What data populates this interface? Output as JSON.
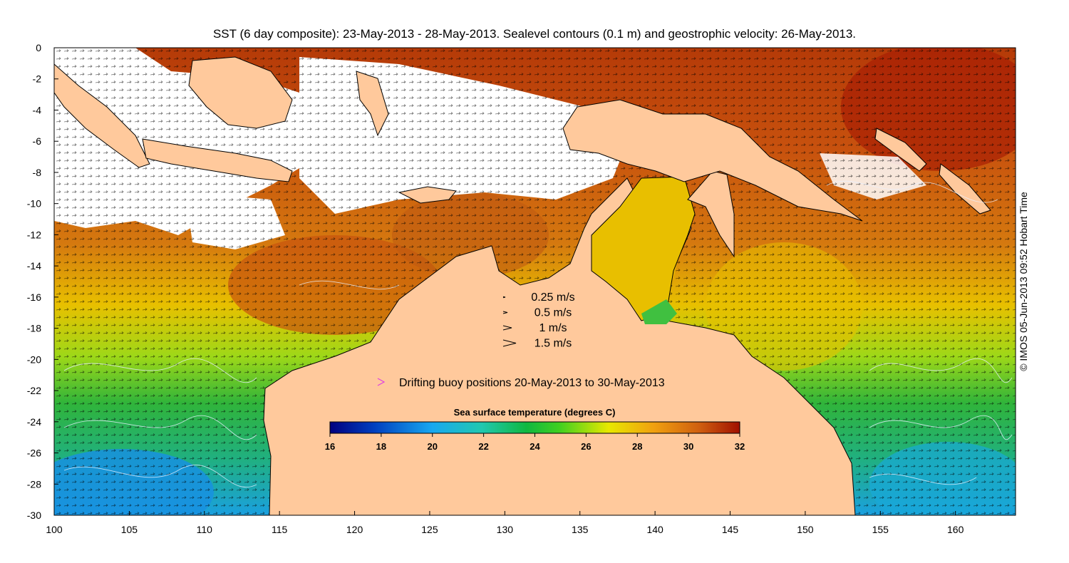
{
  "title": "SST (6 day composite): 23-May-2013 - 28-May-2013. Sealevel contours (0.1 m) and geostrophic velocity: 26-May-2013.",
  "credit": "© IMOS 05-Jun-2013 09:52 Hobart Time",
  "map": {
    "lon_range": [
      100,
      164
    ],
    "lat_range": [
      -30,
      0
    ],
    "x_ticks": [
      "100",
      "105",
      "110",
      "115",
      "120",
      "125",
      "130",
      "135",
      "140",
      "145",
      "150",
      "155",
      "160"
    ],
    "y_ticks": [
      "0",
      "-2",
      "-4",
      "-6",
      "-8",
      "-10",
      "-12",
      "-14",
      "-16",
      "-18",
      "-20",
      "-22",
      "-24",
      "-26",
      "-28",
      "-30"
    ],
    "land_color": "#ffc99c",
    "cloud_color": "#ffffff"
  },
  "velocity_legend": {
    "items": [
      {
        "label": "0.25 m/s",
        "speed": 0.25
      },
      {
        "label": "0.5 m/s",
        "speed": 0.5
      },
      {
        "label": "1 m/s",
        "speed": 1
      },
      {
        "label": "1.5 m/s",
        "speed": 1.5
      }
    ]
  },
  "buoy_legend": {
    "label": "Drifting buoy positions 20-May-2013 to 30-May-2013",
    "color": "#e040e0"
  },
  "colorbar": {
    "title": "Sea surface temperature (degrees C)",
    "ticks": [
      "16",
      "18",
      "20",
      "22",
      "24",
      "26",
      "28",
      "30",
      "32"
    ],
    "min": 16,
    "max": 32,
    "stops": [
      "#00007f",
      "#0040c0",
      "#18a8f0",
      "#20c8b0",
      "#10b840",
      "#40d020",
      "#e8e800",
      "#f0a010",
      "#d06010",
      "#a01000"
    ]
  }
}
